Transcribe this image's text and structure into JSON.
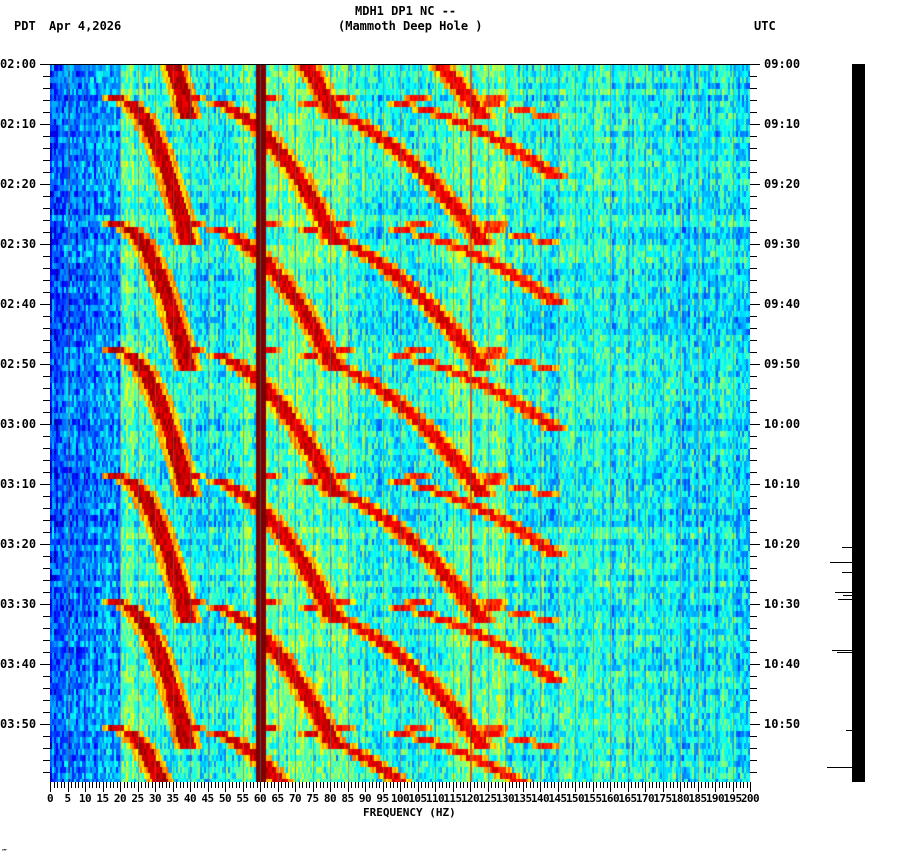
{
  "header": {
    "station": "MDH1 DP1 NC --",
    "site": "(Mammoth Deep Hole )",
    "left_tz": "PDT",
    "date": "Apr 4,2026",
    "right_tz": "UTC"
  },
  "footer": {
    "mark": "‴"
  },
  "chart_data": {
    "type": "heatmap",
    "title": "MDH1 DP1 NC -- (Mammoth Deep Hole )",
    "subtitle": "Apr 4,2026",
    "xlabel": "FREQUENCY (HZ)",
    "ylabel_left": "PDT",
    "ylabel_right": "UTC",
    "xlim": [
      0,
      200
    ],
    "x_ticks": [
      0,
      5,
      10,
      15,
      20,
      25,
      30,
      35,
      40,
      45,
      50,
      55,
      60,
      65,
      70,
      75,
      80,
      85,
      90,
      95,
      100,
      105,
      110,
      115,
      120,
      125,
      130,
      135,
      140,
      145,
      150,
      155,
      160,
      165,
      170,
      175,
      180,
      185,
      190,
      195,
      200
    ],
    "y_ticks_left": [
      "02:00",
      "02:10",
      "02:20",
      "02:30",
      "02:40",
      "02:50",
      "03:00",
      "03:10",
      "03:20",
      "03:30",
      "03:40",
      "03:50"
    ],
    "y_ticks_right": [
      "09:00",
      "09:10",
      "09:20",
      "09:30",
      "09:40",
      "09:50",
      "10:00",
      "10:10",
      "10:20",
      "10:30",
      "10:40",
      "10:50"
    ],
    "time_range_minutes": 120,
    "colormap": "jet (blue=low power, dark red=high power)",
    "colors": {
      "low": "#1e6cf0",
      "mid_low": "#39c8f0",
      "mid": "#7cf08a",
      "mid_high": "#f5f02a",
      "high": "#f04a10",
      "peak": "#8b0000"
    },
    "features": [
      {
        "type": "constant_line",
        "frequency_hz": 60,
        "description": "persistent 60 Hz power-line tone, dark red"
      },
      {
        "type": "constant_line",
        "frequency_hz": 120,
        "description": "weaker 120 Hz harmonic line"
      },
      {
        "type": "repeating_chirps",
        "period_minutes": 21,
        "description": "curved upward-sweeping harmonic streaks repeating roughly every 20-22 minutes, strongest 20-140 Hz"
      },
      {
        "type": "low_freq_quiet",
        "range_hz": [
          0,
          25
        ],
        "description": "blue low-power region at left"
      }
    ],
    "seismogram_trace": {
      "description": "vertical black waveform trace at right with spikes near 10:22, 10:29, 10:37, 10:57 UTC"
    }
  }
}
